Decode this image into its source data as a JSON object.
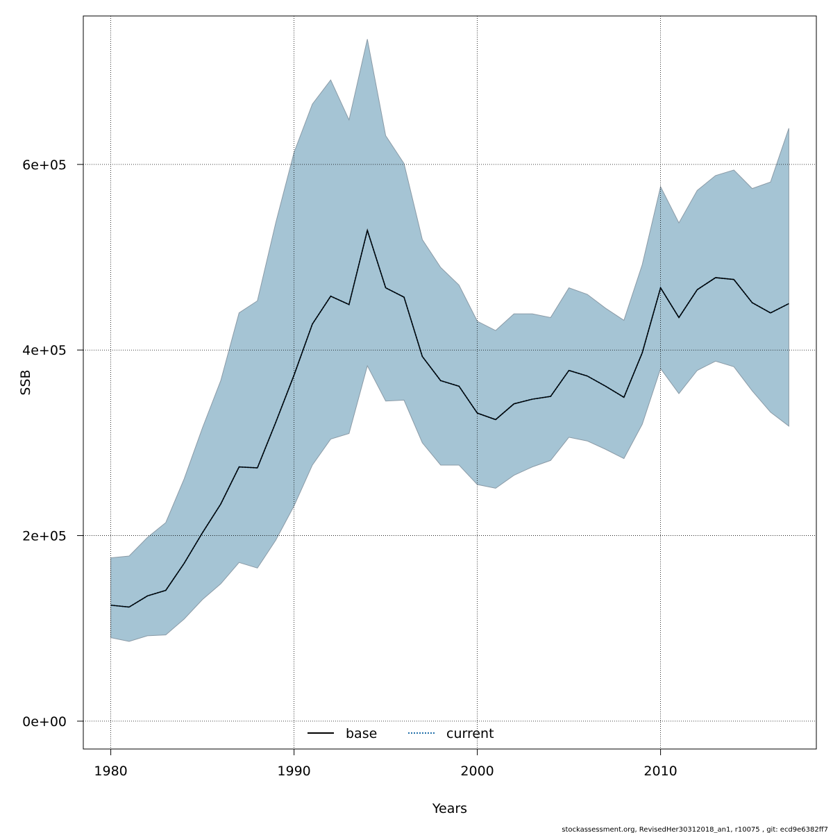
{
  "chart_data": {
    "type": "area",
    "xlabel": "Years",
    "ylabel": "SSB",
    "xlim": [
      1978.5,
      2018.5
    ],
    "ylim": [
      -30000,
      760000
    ],
    "x_ticks": [
      1980,
      1990,
      2000,
      2010
    ],
    "x_tick_labels": [
      "1980",
      "1990",
      "2000",
      "2010"
    ],
    "y_ticks": [
      0,
      200000,
      400000,
      600000
    ],
    "y_tick_labels": [
      "0e+00",
      "2e+05",
      "4e+05",
      "6e+05"
    ],
    "grid": true,
    "legend_position": "bottom",
    "legend": [
      {
        "label": "base",
        "style": "solid",
        "color": "#000000"
      },
      {
        "label": "current",
        "style": "dotted",
        "color": "#1f6ea8"
      }
    ],
    "x": [
      1980,
      1981,
      1982,
      1983,
      1984,
      1985,
      1986,
      1987,
      1988,
      1989,
      1990,
      1991,
      1992,
      1993,
      1994,
      1995,
      1996,
      1997,
      1998,
      1999,
      2000,
      2001,
      2002,
      2003,
      2004,
      2005,
      2006,
      2007,
      2008,
      2009,
      2010,
      2011,
      2012,
      2013,
      2014,
      2015,
      2016,
      2017
    ],
    "series": [
      {
        "name": "current",
        "values": [
          125000,
          123000,
          135000,
          141000,
          170000,
          203000,
          234000,
          274000,
          273000,
          322000,
          373000,
          428000,
          458000,
          449000,
          529000,
          467000,
          457000,
          393000,
          367000,
          361000,
          332000,
          325000,
          342000,
          347000,
          350000,
          378000,
          372000,
          361000,
          349000,
          397000,
          467000,
          435000,
          465000,
          478000,
          476000,
          451000,
          440000,
          450000
        ]
      },
      {
        "name": "base",
        "values": [
          125000,
          123000,
          135000,
          141000,
          170000,
          203000,
          234000,
          274000,
          273000,
          322000,
          373000,
          428000,
          458000,
          449000,
          529000,
          467000,
          457000,
          393000,
          367000,
          361000,
          332000,
          325000,
          342000,
          347000,
          350000,
          378000,
          372000,
          361000,
          349000,
          397000,
          467000,
          435000,
          465000,
          478000,
          476000,
          451000,
          440000,
          450000
        ]
      }
    ],
    "band": {
      "lower": [
        90000,
        86000,
        92000,
        93000,
        110000,
        131000,
        148000,
        171000,
        165000,
        195000,
        232000,
        276000,
        304000,
        310000,
        383000,
        345000,
        346000,
        300000,
        276000,
        276000,
        255000,
        251000,
        265000,
        274000,
        281000,
        306000,
        302000,
        293000,
        283000,
        320000,
        380000,
        353000,
        378000,
        388000,
        382000,
        356000,
        333000,
        318000
      ],
      "upper": [
        176000,
        178000,
        198000,
        214000,
        261000,
        316000,
        367000,
        440000,
        453000,
        537000,
        613000,
        665000,
        691000,
        648000,
        735000,
        631000,
        601000,
        519000,
        489000,
        470000,
        431000,
        421000,
        439000,
        439000,
        435000,
        467000,
        460000,
        445000,
        432000,
        492000,
        576000,
        537000,
        572000,
        588000,
        594000,
        574000,
        581000,
        639000
      ],
      "color": "#a5c4d4"
    }
  },
  "footer": "stockassessment.org, RevisedHer30312018_an1, r10075 , git: ecd9e6382ff7"
}
